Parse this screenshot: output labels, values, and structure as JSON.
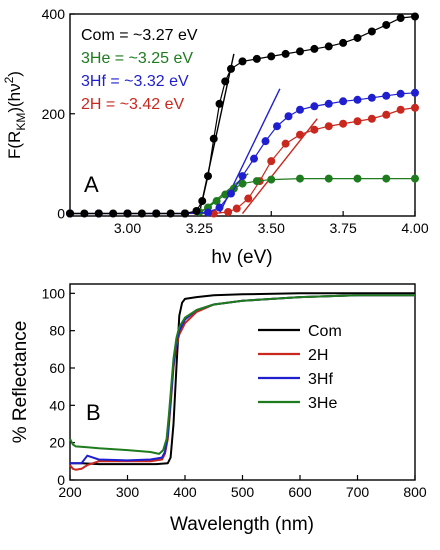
{
  "chart_data": [
    {
      "type": "scatter",
      "panel_label": "A",
      "xlabel": "hν (eV)",
      "ylabel": "F(R_KM)(hν)²",
      "xlim": [
        2.8,
        4.0
      ],
      "ylim": [
        -5,
        400
      ],
      "xticks": [
        "3.00",
        "3.25",
        "3.50",
        "3.75",
        "4.00"
      ],
      "xtick_values": [
        3.0,
        3.25,
        3.5,
        3.75,
        4.0
      ],
      "yticks": [
        "0",
        "200",
        "400"
      ],
      "ytick_values": [
        0,
        200,
        400
      ],
      "legend_position": "top-left",
      "series": [
        {
          "name": "Com = ~3.27 eV",
          "color": "#000000",
          "x": [
            2.8,
            2.85,
            2.9,
            2.95,
            3.0,
            3.05,
            3.1,
            3.15,
            3.2,
            3.24,
            3.26,
            3.28,
            3.3,
            3.32,
            3.34,
            3.36,
            3.4,
            3.45,
            3.5,
            3.55,
            3.6,
            3.65,
            3.7,
            3.75,
            3.8,
            3.85,
            3.9,
            3.95,
            4.0
          ],
          "y": [
            0,
            0,
            0,
            0,
            0,
            0,
            0,
            0,
            0,
            5,
            25,
            75,
            150,
            220,
            265,
            290,
            305,
            310,
            315,
            320,
            325,
            330,
            335,
            342,
            352,
            365,
            378,
            392,
            395
          ],
          "fit_line": {
            "x": [
              3.25,
              3.37
            ],
            "y": [
              0,
              320
            ]
          }
        },
        {
          "name": "3He = ~3.25 eV",
          "color": "#1e7b1e",
          "x": [
            2.8,
            2.9,
            3.0,
            3.1,
            3.2,
            3.25,
            3.28,
            3.31,
            3.34,
            3.37,
            3.4,
            3.45,
            3.5,
            3.6,
            3.7,
            3.8,
            3.9,
            4.0
          ],
          "y": [
            0,
            0,
            0,
            0,
            0,
            3,
            12,
            25,
            38,
            50,
            60,
            65,
            68,
            70,
            70,
            70,
            70,
            70
          ],
          "fit_line": {
            "x": [
              3.25,
              3.42
            ],
            "y": [
              0,
              80
            ]
          }
        },
        {
          "name": "3Hf = ~3.32 eV",
          "color": "#1f1fd0",
          "x": [
            2.8,
            2.9,
            3.0,
            3.1,
            3.2,
            3.28,
            3.32,
            3.36,
            3.4,
            3.44,
            3.48,
            3.52,
            3.56,
            3.6,
            3.65,
            3.7,
            3.75,
            3.8,
            3.85,
            3.9,
            3.95,
            4.0
          ],
          "y": [
            0,
            0,
            0,
            0,
            0,
            2,
            12,
            40,
            75,
            110,
            145,
            175,
            195,
            208,
            215,
            220,
            225,
            228,
            232,
            236,
            240,
            242
          ],
          "fit_line": {
            "x": [
              3.32,
              3.53
            ],
            "y": [
              0,
              250
            ]
          }
        },
        {
          "name": "2H = ~3.42 eV",
          "color": "#c8281e",
          "x": [
            2.8,
            2.9,
            3.0,
            3.1,
            3.2,
            3.3,
            3.35,
            3.38,
            3.42,
            3.46,
            3.5,
            3.55,
            3.6,
            3.65,
            3.7,
            3.75,
            3.8,
            3.85,
            3.9,
            3.95,
            4.0
          ],
          "y": [
            0,
            0,
            0,
            0,
            0,
            0,
            3,
            10,
            30,
            65,
            105,
            140,
            158,
            168,
            175,
            180,
            185,
            190,
            198,
            208,
            212
          ],
          "fit_line": {
            "x": [
              3.4,
              3.66
            ],
            "y": [
              0,
              190
            ]
          }
        }
      ]
    },
    {
      "type": "line",
      "panel_label": "B",
      "xlabel": "Wavelength (nm)",
      "ylabel": "% Reflectance",
      "xlim": [
        200,
        800
      ],
      "ylim": [
        0,
        105
      ],
      "xticks": [
        "200",
        "300",
        "400",
        "500",
        "600",
        "700",
        "800"
      ],
      "xtick_values": [
        200,
        300,
        400,
        500,
        600,
        700,
        800
      ],
      "yticks": [
        "0",
        "20",
        "40",
        "60",
        "80",
        "100"
      ],
      "ytick_values": [
        0,
        20,
        40,
        60,
        80,
        100
      ],
      "legend_position": "center-right",
      "series": [
        {
          "name": "Com",
          "color": "#000000",
          "x": [
            200,
            220,
            250,
            300,
            350,
            370,
            375,
            380,
            385,
            390,
            395,
            400,
            420,
            450,
            500,
            600,
            700,
            800
          ],
          "y": [
            9,
            9,
            8.5,
            8.5,
            8.5,
            9,
            12,
            30,
            60,
            88,
            95,
            97,
            98,
            99,
            99.5,
            100,
            100,
            100
          ]
        },
        {
          "name": "2H",
          "color": "#c8281e",
          "x": [
            200,
            205,
            210,
            220,
            230,
            250,
            300,
            340,
            360,
            365,
            370,
            375,
            380,
            385,
            390,
            400,
            420,
            450,
            500,
            600,
            700,
            800
          ],
          "y": [
            8,
            6,
            5.5,
            6,
            8,
            10,
            10,
            10,
            11,
            14,
            22,
            40,
            60,
            72,
            78,
            84,
            90,
            94,
            96,
            98,
            99,
            99
          ]
        },
        {
          "name": "3Hf",
          "color": "#1f1fd0",
          "x": [
            200,
            210,
            220,
            230,
            240,
            250,
            300,
            340,
            360,
            365,
            370,
            375,
            380,
            385,
            390,
            400,
            420,
            450,
            500,
            600,
            700,
            800
          ],
          "y": [
            9,
            9,
            9,
            13,
            12,
            11,
            10.5,
            11,
            12,
            15,
            24,
            42,
            62,
            74,
            80,
            86,
            91,
            94,
            96,
            98,
            99,
            99
          ]
        },
        {
          "name": "3He",
          "color": "#1e7b1e",
          "x": [
            200,
            205,
            210,
            230,
            250,
            300,
            340,
            355,
            362,
            368,
            372,
            376,
            380,
            385,
            390,
            400,
            420,
            450,
            500,
            600,
            700,
            800
          ],
          "y": [
            22,
            19,
            18,
            17.5,
            17,
            16,
            15,
            14,
            16,
            22,
            35,
            50,
            65,
            76,
            82,
            87,
            91,
            94,
            96,
            98,
            99,
            99
          ]
        }
      ]
    }
  ]
}
